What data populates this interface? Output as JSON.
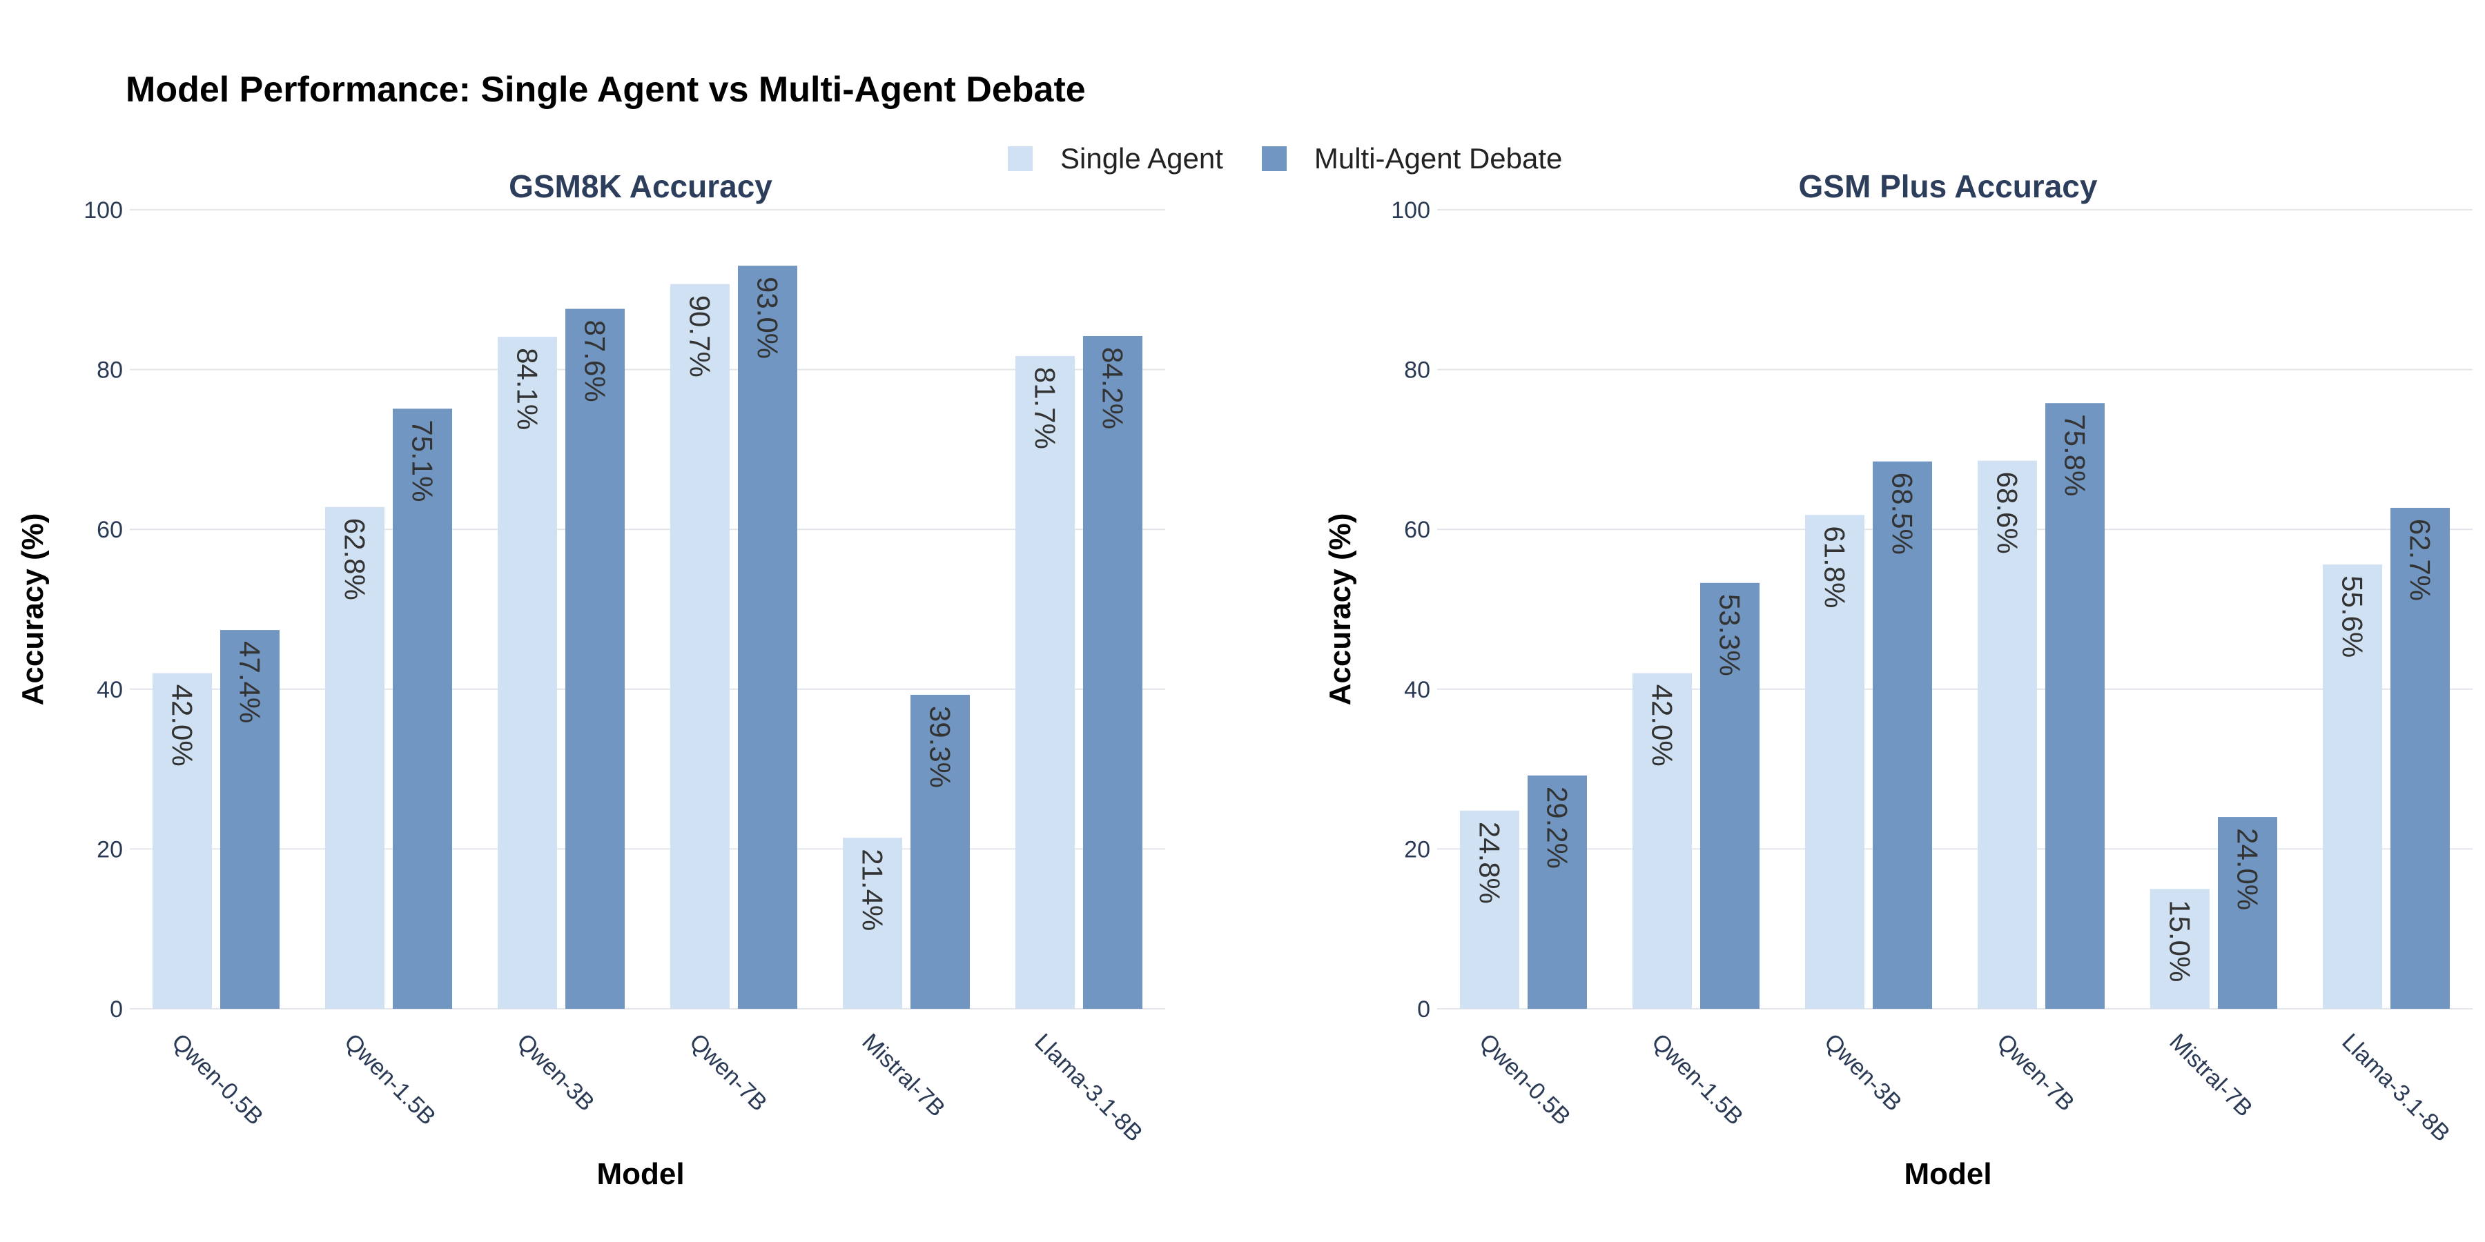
{
  "title": "Model Performance: Single Agent vs Multi-Agent Debate",
  "legend": {
    "items": [
      {
        "label": "Single Agent",
        "color": "#cfe1f3"
      },
      {
        "label": "Multi-Agent Debate",
        "color": "#7096c1"
      }
    ]
  },
  "chart_data": [
    {
      "type": "bar",
      "title": "GSM8K Accuracy",
      "xlabel": "Model",
      "ylabel": "Accuracy (%)",
      "ylim": [
        0,
        100
      ],
      "yticks": [
        0,
        20,
        40,
        60,
        80,
        100
      ],
      "categories": [
        "Qwen-0.5B",
        "Qwen-1.5B",
        "Qwen-3B",
        "Qwen-7B",
        "Mistral-7B",
        "Llama-3.1-8B"
      ],
      "series": [
        {
          "name": "Single Agent",
          "color": "#cfe1f3",
          "values": [
            42.0,
            62.8,
            84.1,
            90.7,
            21.4,
            81.7
          ],
          "labels": [
            "42.0%",
            "62.8%",
            "84.1%",
            "90.7%",
            "21.4%",
            "81.7%"
          ]
        },
        {
          "name": "Multi-Agent Debate",
          "color": "#7096c1",
          "values": [
            47.4,
            75.1,
            87.6,
            93.0,
            39.3,
            84.2
          ],
          "labels": [
            "47.4%",
            "75.1%",
            "87.6%",
            "93.0%",
            "39.3%",
            "84.2%"
          ]
        }
      ],
      "grid": true
    },
    {
      "type": "bar",
      "title": "GSM Plus Accuracy",
      "xlabel": "Model",
      "ylabel": "Accuracy (%)",
      "ylim": [
        0,
        100
      ],
      "yticks": [
        0,
        20,
        40,
        60,
        80,
        100
      ],
      "categories": [
        "Qwen-0.5B",
        "Qwen-1.5B",
        "Qwen-3B",
        "Qwen-7B",
        "Mistral-7B",
        "Llama-3.1-8B"
      ],
      "series": [
        {
          "name": "Single Agent",
          "color": "#cfe1f3",
          "values": [
            24.8,
            42.0,
            61.8,
            68.6,
            15.0,
            55.6
          ],
          "labels": [
            "24.8%",
            "42.0%",
            "61.8%",
            "68.6%",
            "15.0%",
            "55.6%"
          ]
        },
        {
          "name": "Multi-Agent Debate",
          "color": "#7096c1",
          "values": [
            29.2,
            53.3,
            68.5,
            75.8,
            24.0,
            62.7
          ],
          "labels": [
            "29.2%",
            "53.3%",
            "68.5%",
            "75.8%",
            "24.0%",
            "62.7%"
          ]
        }
      ],
      "grid": true
    }
  ]
}
